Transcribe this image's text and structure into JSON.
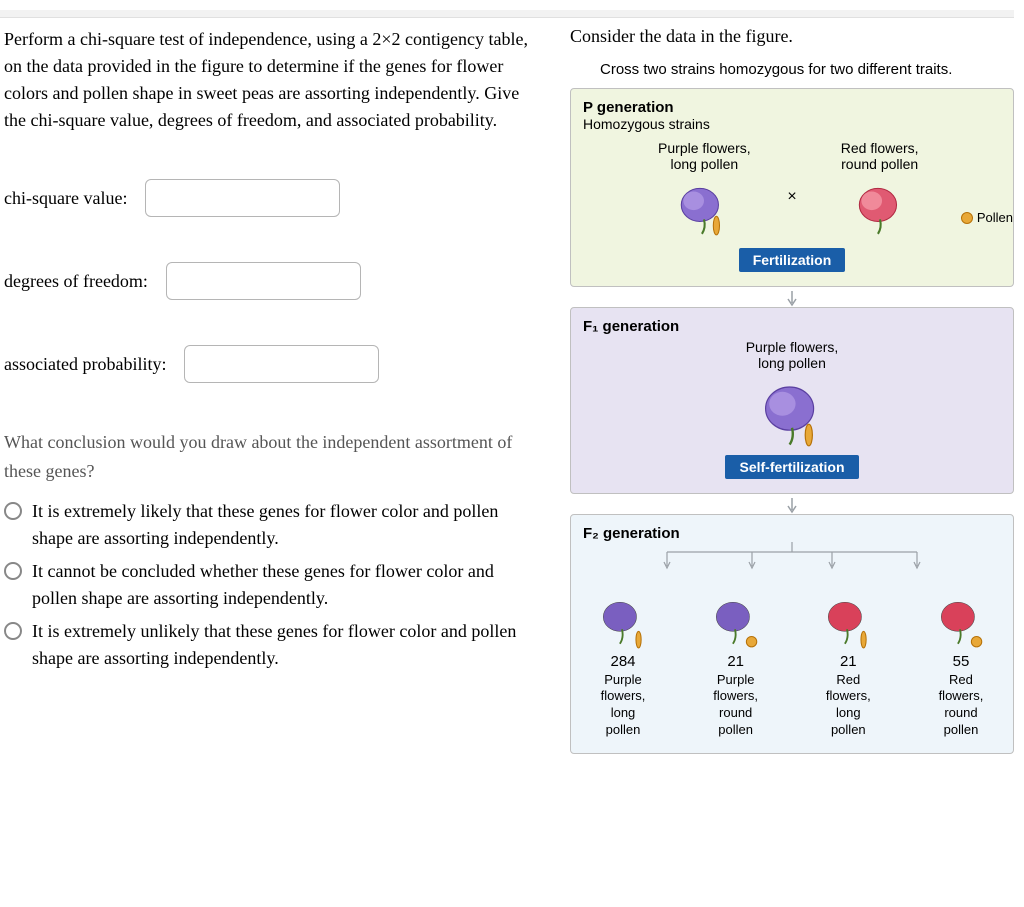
{
  "question_text": "Perform a chi-square test of independence, using a 2×2 contigency table, on the data provided in the figure to determine if the genes for flower colors and pollen shape in sweet peas are assorting independently. Give the chi-square value, degrees of freedom, and associated probability.",
  "inputs": {
    "chi_square": {
      "label": "chi-square value:",
      "value": ""
    },
    "dof": {
      "label": "degrees of freedom:",
      "value": ""
    },
    "prob": {
      "label": "associated probability:",
      "value": ""
    }
  },
  "sub_question": "What conclusion would you draw about the independent assortment of these genes?",
  "options": [
    "It is extremely likely that these genes for flower color and pollen shape are assorting independently.",
    "It cannot be concluded whether these genes for flower color and pollen shape are assorting independently.",
    "It is extremely unlikely that these genes for flower color and pollen shape are assorting independently."
  ],
  "figure": {
    "title": "Consider the data in the figure.",
    "subtitle": "Cross two strains homozygous for two different traits.",
    "p_generation": {
      "label": "P generation",
      "sublabel": "Homozygous strains",
      "left": {
        "line1": "Purple flowers,",
        "line2": "long pollen",
        "flower_color": "#7a5fc0",
        "pollen_shape": "long"
      },
      "right": {
        "line1": "Red flowers,",
        "line2": "round pollen",
        "flower_color": "#d9415a",
        "pollen_shape": "round"
      },
      "cross_symbol": "×",
      "pollen_label": "Pollen",
      "badge": "Fertilization"
    },
    "f1_generation": {
      "label": "F₁ generation",
      "desc_line1": "Purple flowers,",
      "desc_line2": "long pollen",
      "flower_color": "#7a5fc0",
      "pollen_shape": "long",
      "badge": "Self-fertilization"
    },
    "f2_generation": {
      "label": "F₂ generation",
      "phenotypes": [
        {
          "count": "284",
          "line1": "Purple",
          "line2": "flowers,",
          "line3": "long",
          "line4": "pollen",
          "flower_color": "#7a5fc0",
          "pollen_shape": "long"
        },
        {
          "count": "21",
          "line1": "Purple",
          "line2": "flowers,",
          "line3": "round",
          "line4": "pollen",
          "flower_color": "#7a5fc0",
          "pollen_shape": "round"
        },
        {
          "count": "21",
          "line1": "Red",
          "line2": "flowers,",
          "line3": "long",
          "line4": "pollen",
          "flower_color": "#d9415a",
          "pollen_shape": "long"
        },
        {
          "count": "55",
          "line1": "Red",
          "line2": "flowers,",
          "line3": "round",
          "line4": "pollen",
          "flower_color": "#d9415a",
          "pollen_shape": "round"
        }
      ]
    },
    "colors": {
      "panel_p_bg": "#f0f5e0",
      "panel_f1_bg": "#e7e3f2",
      "panel_f2_bg": "#eef5fa",
      "badge_bg": "#1a5ea8",
      "pollen_fill": "#e8a838",
      "pollen_stroke": "#b77208",
      "arrow_color": "#9aa0a6"
    }
  }
}
